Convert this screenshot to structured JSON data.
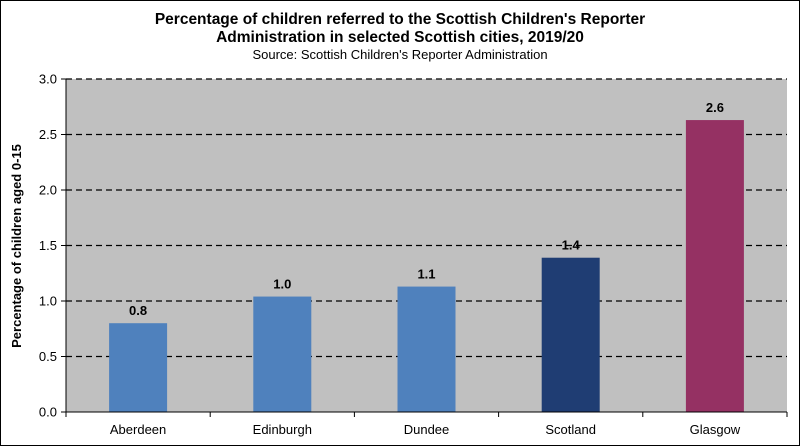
{
  "chart_data": {
    "type": "bar",
    "title": "Percentage of children referred to the Scottish Children's Reporter\nAdministration in selected Scottish cities, 2019/20",
    "subtitle": "Source: Scottish Children's Reporter Administration",
    "xlabel": "",
    "ylabel": "Percentage of children aged 0-15",
    "categories": [
      "Aberdeen",
      "Edinburgh",
      "Dundee",
      "Scotland",
      "Glasgow"
    ],
    "values": [
      0.8,
      1.04,
      1.13,
      1.39,
      2.63
    ],
    "data_labels": [
      "0.8",
      "1.0",
      "1.1",
      "1.4",
      "2.6"
    ],
    "bar_colors": [
      "#4f81bd",
      "#4f81bd",
      "#4f81bd",
      "#1f3d73",
      "#953163"
    ],
    "ylim": [
      0,
      3
    ],
    "yticks": [
      "0.0",
      "0.5",
      "1.0",
      "1.5",
      "2.0",
      "2.5",
      "3.0"
    ],
    "grid": true,
    "legend": "none",
    "plot_background": "#c0c0c0"
  }
}
